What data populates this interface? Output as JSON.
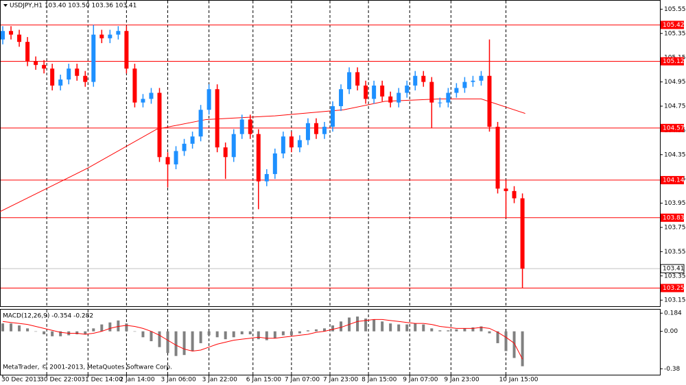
{
  "chart_data": [
    {
      "type": "candlestick",
      "title": "USDJPY,H1  103.40 103.50 103.36 103.41",
      "x": [
        1,
        4,
        7,
        10,
        13,
        16,
        19,
        22,
        25,
        28,
        31,
        34,
        37,
        40,
        43,
        46,
        49,
        52,
        55,
        58,
        61,
        64,
        67,
        70,
        73,
        76,
        79,
        82,
        85,
        88,
        91,
        94,
        97,
        100,
        103,
        106,
        109,
        112,
        115,
        118,
        121,
        124,
        127,
        130,
        133,
        136,
        139,
        142,
        145,
        148,
        151,
        154,
        157,
        160,
        163,
        166,
        169,
        172,
        175,
        178,
        181,
        184,
        187,
        190
      ],
      "open": [
        105.3,
        105.37,
        105.34,
        105.28,
        105.12,
        105.09,
        105.06,
        104.92,
        104.97,
        105.06,
        105.0,
        104.95,
        105.34,
        105.31,
        105.34,
        105.37,
        105.06,
        104.78,
        104.81,
        104.86,
        104.33,
        104.27,
        104.38,
        104.44,
        104.5,
        104.72,
        104.89,
        104.41,
        104.33,
        104.52,
        104.64,
        104.52,
        104.13,
        104.19,
        104.36,
        104.5,
        104.41,
        104.47,
        104.61,
        104.52,
        104.58,
        104.75,
        104.89,
        105.03,
        104.92,
        104.81,
        104.92,
        104.83,
        104.78,
        104.86,
        104.92,
        105.0,
        104.95,
        104.78,
        104.78,
        104.86,
        104.9,
        104.95,
        104.96,
        105.0,
        104.58,
        104.07,
        104.05,
        103.99
      ],
      "high": [
        105.41,
        105.41,
        105.38,
        105.32,
        105.16,
        105.13,
        105.1,
        105.01,
        105.1,
        105.1,
        105.04,
        105.42,
        105.38,
        105.38,
        105.41,
        105.41,
        105.1,
        104.85,
        104.9,
        104.9,
        104.37,
        104.42,
        104.48,
        104.54,
        104.76,
        104.93,
        104.93,
        104.45,
        104.56,
        104.68,
        104.68,
        104.56,
        104.23,
        104.4,
        104.54,
        104.54,
        104.51,
        104.65,
        104.65,
        104.62,
        104.79,
        104.93,
        105.07,
        105.07,
        104.96,
        104.96,
        104.96,
        104.87,
        104.9,
        104.96,
        105.04,
        105.04,
        104.99,
        104.82,
        104.9,
        104.94,
        104.99,
        105.0,
        105.04,
        105.3,
        104.62,
        104.14,
        104.09,
        104.03
      ],
      "low": [
        105.26,
        105.3,
        105.24,
        105.08,
        105.05,
        105.02,
        104.88,
        104.88,
        104.93,
        104.96,
        104.91,
        104.91,
        105.27,
        105.27,
        105.3,
        105.02,
        104.74,
        104.74,
        104.77,
        104.29,
        104.08,
        104.23,
        104.34,
        104.4,
        104.46,
        104.68,
        104.37,
        104.15,
        104.29,
        104.48,
        104.48,
        103.9,
        104.09,
        104.15,
        104.32,
        104.37,
        104.37,
        104.43,
        104.48,
        104.48,
        104.54,
        104.71,
        104.85,
        104.88,
        104.77,
        104.77,
        104.79,
        104.74,
        104.74,
        104.82,
        104.88,
        104.91,
        104.57,
        104.74,
        104.74,
        104.82,
        104.86,
        104.91,
        104.92,
        104.54,
        104.03,
        103.83,
        103.95,
        103.25
      ],
      "close": [
        105.37,
        105.34,
        105.28,
        105.12,
        105.09,
        105.06,
        104.92,
        104.97,
        105.06,
        105.0,
        104.95,
        105.34,
        105.31,
        105.34,
        105.37,
        105.06,
        104.78,
        104.81,
        104.86,
        104.33,
        104.27,
        104.38,
        104.44,
        104.5,
        104.72,
        104.89,
        104.41,
        104.33,
        104.52,
        104.64,
        104.52,
        104.13,
        104.19,
        104.36,
        104.5,
        104.41,
        104.47,
        104.61,
        104.52,
        104.58,
        104.75,
        104.89,
        105.03,
        104.92,
        104.81,
        104.92,
        104.83,
        104.78,
        104.86,
        104.92,
        105.0,
        104.95,
        104.78,
        104.78,
        104.86,
        104.9,
        104.95,
        104.96,
        105.0,
        104.58,
        104.07,
        104.05,
        103.99,
        103.41
      ],
      "up_color": "#1e90ff",
      "down_color": "#ff0000",
      "ma_x": [
        0,
        32,
        57,
        75,
        100,
        125,
        140,
        160,
        175,
        191
      ],
      "ma_values": [
        103.88,
        104.24,
        104.56,
        104.64,
        104.67,
        104.72,
        104.79,
        104.81,
        104.81,
        104.69
      ],
      "ma_color": "#ff0000",
      "levels": [
        105.42,
        105.12,
        104.57,
        104.14,
        103.83,
        103.25
      ],
      "level_color": "#ff0000",
      "last": 103.41,
      "xlim": [
        0,
        240
      ],
      "xticks": [
        {
          "value": 1,
          "label": "30 Dec 2013"
        },
        {
          "value": 17,
          "label": "30 Dec 22:00"
        },
        {
          "value": 32,
          "label": "31 Dec 14:00"
        },
        {
          "value": 46,
          "label": "2 Jan 14:00"
        },
        {
          "value": 61,
          "label": "3 Jan 06:00"
        },
        {
          "value": 76,
          "label": "3 Jan 22:00"
        },
        {
          "value": 92,
          "label": "6 Jan 15:00"
        },
        {
          "value": 106,
          "label": "7 Jan 07:00"
        },
        {
          "value": 120,
          "label": "7 Jan 23:00"
        },
        {
          "value": 134,
          "label": "8 Jan 15:00"
        },
        {
          "value": 149,
          "label": "9 Jan 07:00"
        },
        {
          "value": 164,
          "label": "9 Jan 23:00"
        },
        {
          "value": 184,
          "label": "10 Jan 15:00"
        }
      ],
      "ylim": [
        103.1,
        105.62
      ],
      "yticks": [
        105.55,
        105.35,
        105.15,
        104.95,
        104.75,
        104.55,
        104.35,
        104.15,
        103.95,
        103.75,
        103.55,
        103.35,
        103.15
      ],
      "grid": true
    },
    {
      "type": "macd",
      "title": "MACD(12,26,9) -0.354 -0.282",
      "x": [
        1,
        4,
        7,
        10,
        13,
        16,
        19,
        22,
        25,
        28,
        31,
        34,
        37,
        40,
        43,
        46,
        49,
        52,
        55,
        58,
        61,
        64,
        67,
        70,
        73,
        76,
        79,
        82,
        85,
        88,
        91,
        94,
        97,
        100,
        103,
        106,
        109,
        112,
        115,
        118,
        121,
        124,
        127,
        130,
        133,
        136,
        139,
        142,
        145,
        148,
        151,
        154,
        157,
        160,
        163,
        166,
        169,
        172,
        175,
        178,
        181,
        184,
        187,
        190
      ],
      "series": [
        {
          "color": "#808080",
          "values": [
            0.08,
            0.08,
            0.06,
            0.03,
            0.0,
            -0.03,
            -0.05,
            -0.05,
            -0.04,
            -0.03,
            -0.03,
            0.03,
            0.07,
            0.09,
            0.11,
            0.08,
            0.0,
            -0.06,
            -0.1,
            -0.16,
            -0.22,
            -0.25,
            -0.24,
            -0.2,
            -0.12,
            -0.04,
            -0.06,
            -0.08,
            -0.06,
            -0.03,
            -0.03,
            -0.08,
            -0.09,
            -0.07,
            -0.04,
            -0.04,
            -0.02,
            0.01,
            0.02,
            0.03,
            0.06,
            0.1,
            0.14,
            0.15,
            0.13,
            0.12,
            0.1,
            0.08,
            0.07,
            0.07,
            0.08,
            0.07,
            0.03,
            0.01,
            0.01,
            0.02,
            0.03,
            0.04,
            0.05,
            -0.02,
            -0.12,
            -0.2,
            -0.27,
            -0.354
          ]
        },
        {
          "color": "#ff0000",
          "values": [
            0.1,
            0.09,
            0.08,
            0.07,
            0.05,
            0.03,
            0.01,
            -0.01,
            -0.02,
            -0.02,
            -0.03,
            -0.02,
            0.0,
            0.03,
            0.05,
            0.06,
            0.05,
            0.03,
            0.0,
            -0.04,
            -0.09,
            -0.14,
            -0.18,
            -0.2,
            -0.19,
            -0.16,
            -0.13,
            -0.11,
            -0.09,
            -0.08,
            -0.07,
            -0.06,
            -0.07,
            -0.07,
            -0.06,
            -0.05,
            -0.04,
            -0.03,
            -0.01,
            0.0,
            0.02,
            0.04,
            0.07,
            0.1,
            0.11,
            0.12,
            0.12,
            0.11,
            0.1,
            0.09,
            0.08,
            0.08,
            0.07,
            0.05,
            0.04,
            0.03,
            0.03,
            0.03,
            0.04,
            0.03,
            -0.01,
            -0.06,
            -0.12,
            -0.282
          ]
        }
      ],
      "ylim": [
        -0.44,
        0.22
      ],
      "yticks": [
        0.184,
        {
          "value": 0,
          "label": "0.00"
        },
        -0.38
      ]
    }
  ],
  "footer": "MetaTrader, © 2001-2013, MetaQuotes Software Corp."
}
